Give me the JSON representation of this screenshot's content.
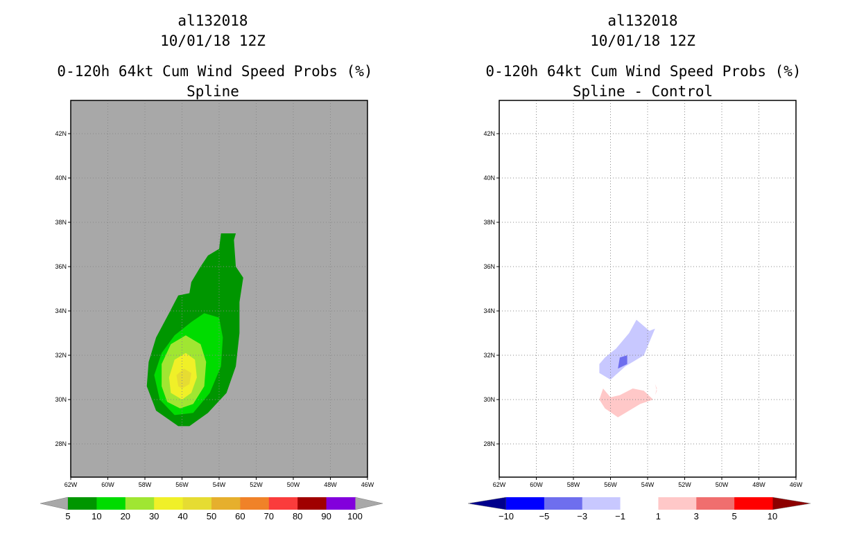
{
  "chart_data": [
    {
      "type": "heatmap",
      "storm_id": "al132018",
      "datetime": "10/01/18 12Z",
      "title": "0-120h 64kt Cum Wind Speed Probs (%)",
      "subtitle": "Spline",
      "background_color": "#a8a8a8",
      "xlim": [
        -62,
        -46
      ],
      "ylim": [
        26.5,
        43.5
      ],
      "x_ticks": [
        "62W",
        "60W",
        "58W",
        "56W",
        "54W",
        "52W",
        "50W",
        "48W",
        "46W"
      ],
      "y_ticks": [
        "28N",
        "30N",
        "32N",
        "34N",
        "36N",
        "38N",
        "40N",
        "42N"
      ],
      "grid": true,
      "colorbar": {
        "levels": [
          "5",
          "10",
          "20",
          "30",
          "40",
          "50",
          "60",
          "70",
          "80",
          "90",
          "100"
        ],
        "colors": [
          "#009600",
          "#00dc00",
          "#a0e632",
          "#f0f028",
          "#e6dc32",
          "#e6af2d",
          "#f08228",
          "#fa3c3c",
          "#a00000",
          "#8200dc"
        ],
        "extend_color": "#a8a8a8"
      },
      "contours": [
        {
          "level": 5,
          "color": "#009600",
          "polygon": [
            [
              -56.2,
              28.8
            ],
            [
              -55.6,
              28.8
            ],
            [
              -54.6,
              29.4
            ],
            [
              -53.6,
              30.3
            ],
            [
              -53.1,
              31.5
            ],
            [
              -52.9,
              33.0
            ],
            [
              -52.9,
              34.4
            ],
            [
              -52.7,
              35.5
            ],
            [
              -53.1,
              36.0
            ],
            [
              -53.2,
              37.2
            ],
            [
              -53.1,
              37.5
            ],
            [
              -53.9,
              37.5
            ],
            [
              -54.0,
              36.8
            ],
            [
              -54.6,
              36.5
            ],
            [
              -55.0,
              36.0
            ],
            [
              -55.5,
              35.3
            ],
            [
              -55.6,
              34.8
            ],
            [
              -56.2,
              34.7
            ],
            [
              -56.7,
              33.9
            ],
            [
              -57.4,
              32.8
            ],
            [
              -57.8,
              31.7
            ],
            [
              -57.9,
              30.6
            ],
            [
              -57.4,
              29.5
            ]
          ]
        },
        {
          "level": 10,
          "color": "#00dc00",
          "polygon": [
            [
              -56.4,
              29.3
            ],
            [
              -55.4,
              29.4
            ],
            [
              -54.5,
              30.3
            ],
            [
              -53.9,
              31.5
            ],
            [
              -53.8,
              32.8
            ],
            [
              -54.0,
              33.7
            ],
            [
              -54.8,
              33.9
            ],
            [
              -55.5,
              33.5
            ],
            [
              -56.4,
              32.9
            ],
            [
              -57.1,
              32.1
            ],
            [
              -57.5,
              31.1
            ],
            [
              -57.2,
              30.0
            ]
          ]
        },
        {
          "level": 20,
          "color": "#a0e632",
          "polygon": [
            [
              -56.1,
              29.6
            ],
            [
              -55.4,
              29.8
            ],
            [
              -54.8,
              30.6
            ],
            [
              -54.7,
              31.7
            ],
            [
              -55.0,
              32.5
            ],
            [
              -55.8,
              32.9
            ],
            [
              -56.6,
              32.5
            ],
            [
              -57.1,
              31.6
            ],
            [
              -57.1,
              30.6
            ],
            [
              -56.8,
              29.9
            ]
          ]
        },
        {
          "level": 30,
          "color": "#f0f028",
          "polygon": [
            [
              -56.0,
              30.0
            ],
            [
              -55.5,
              30.3
            ],
            [
              -55.2,
              31.0
            ],
            [
              -55.3,
              31.8
            ],
            [
              -55.8,
              32.1
            ],
            [
              -56.4,
              31.8
            ],
            [
              -56.7,
              31.0
            ],
            [
              -56.6,
              30.3
            ]
          ]
        },
        {
          "level": 40,
          "color": "#e6dc32",
          "polygon": [
            [
              -56.0,
              30.5
            ],
            [
              -55.6,
              30.7
            ],
            [
              -55.5,
              31.2
            ],
            [
              -55.9,
              31.4
            ],
            [
              -56.3,
              31.1
            ],
            [
              -56.2,
              30.6
            ]
          ]
        }
      ]
    },
    {
      "type": "heatmap",
      "storm_id": "al132018",
      "datetime": "10/01/18 12Z",
      "title": "0-120h 64kt Cum Wind Speed Probs (%)",
      "subtitle": "Spline - Control",
      "background_color": "#ffffff",
      "xlim": [
        -62,
        -46
      ],
      "ylim": [
        26.5,
        43.5
      ],
      "x_ticks": [
        "62W",
        "60W",
        "58W",
        "56W",
        "54W",
        "52W",
        "50W",
        "48W",
        "46W"
      ],
      "y_ticks": [
        "28N",
        "30N",
        "32N",
        "34N",
        "36N",
        "38N",
        "40N",
        "42N"
      ],
      "grid": true,
      "colorbar": {
        "levels": [
          "-10",
          "-5",
          "-3",
          "-1",
          "1",
          "3",
          "5",
          "10"
        ],
        "colors": [
          "#0000ff",
          "#6e6eee",
          "#c8c8ff",
          "#ffffff",
          "#ffc8c8",
          "#f06e6e",
          "#ff0000"
        ],
        "extend_low_color": "#00008c",
        "extend_high_color": "#8c0000"
      },
      "contours": [
        {
          "level": -1,
          "color": "#c8c8ff",
          "polygon": [
            [
              -56.6,
              31.2
            ],
            [
              -56.0,
              30.9
            ],
            [
              -55.2,
              31.5
            ],
            [
              -54.2,
              32.0
            ],
            [
              -53.6,
              33.2
            ],
            [
              -53.9,
              33.1
            ],
            [
              -54.6,
              33.6
            ],
            [
              -55.0,
              33.0
            ],
            [
              -55.7,
              32.3
            ],
            [
              -56.3,
              31.9
            ],
            [
              -56.6,
              31.6
            ]
          ]
        },
        {
          "level": -3,
          "color": "#6e6eee",
          "polygon": [
            [
              -55.6,
              31.4
            ],
            [
              -55.1,
              31.6
            ],
            [
              -55.1,
              32.0
            ],
            [
              -55.5,
              31.9
            ]
          ]
        },
        {
          "level": 1,
          "color": "#ffc8c8",
          "polygon": [
            [
              -56.6,
              30.0
            ],
            [
              -56.3,
              29.6
            ],
            [
              -55.6,
              29.2
            ],
            [
              -55.2,
              29.4
            ],
            [
              -54.4,
              29.8
            ],
            [
              -53.7,
              30.0
            ],
            [
              -54.2,
              30.4
            ],
            [
              -54.8,
              30.5
            ],
            [
              -55.5,
              30.2
            ],
            [
              -56.0,
              30.1
            ],
            [
              -56.4,
              30.5
            ]
          ]
        },
        {
          "level": 1,
          "color": "#ffc8c8",
          "polygon": [
            [
              -53.6,
              30.2
            ],
            [
              -53.5,
              30.5
            ],
            [
              -53.6,
              30.7
            ],
            [
              -53.5,
              30.4
            ]
          ]
        }
      ]
    }
  ]
}
